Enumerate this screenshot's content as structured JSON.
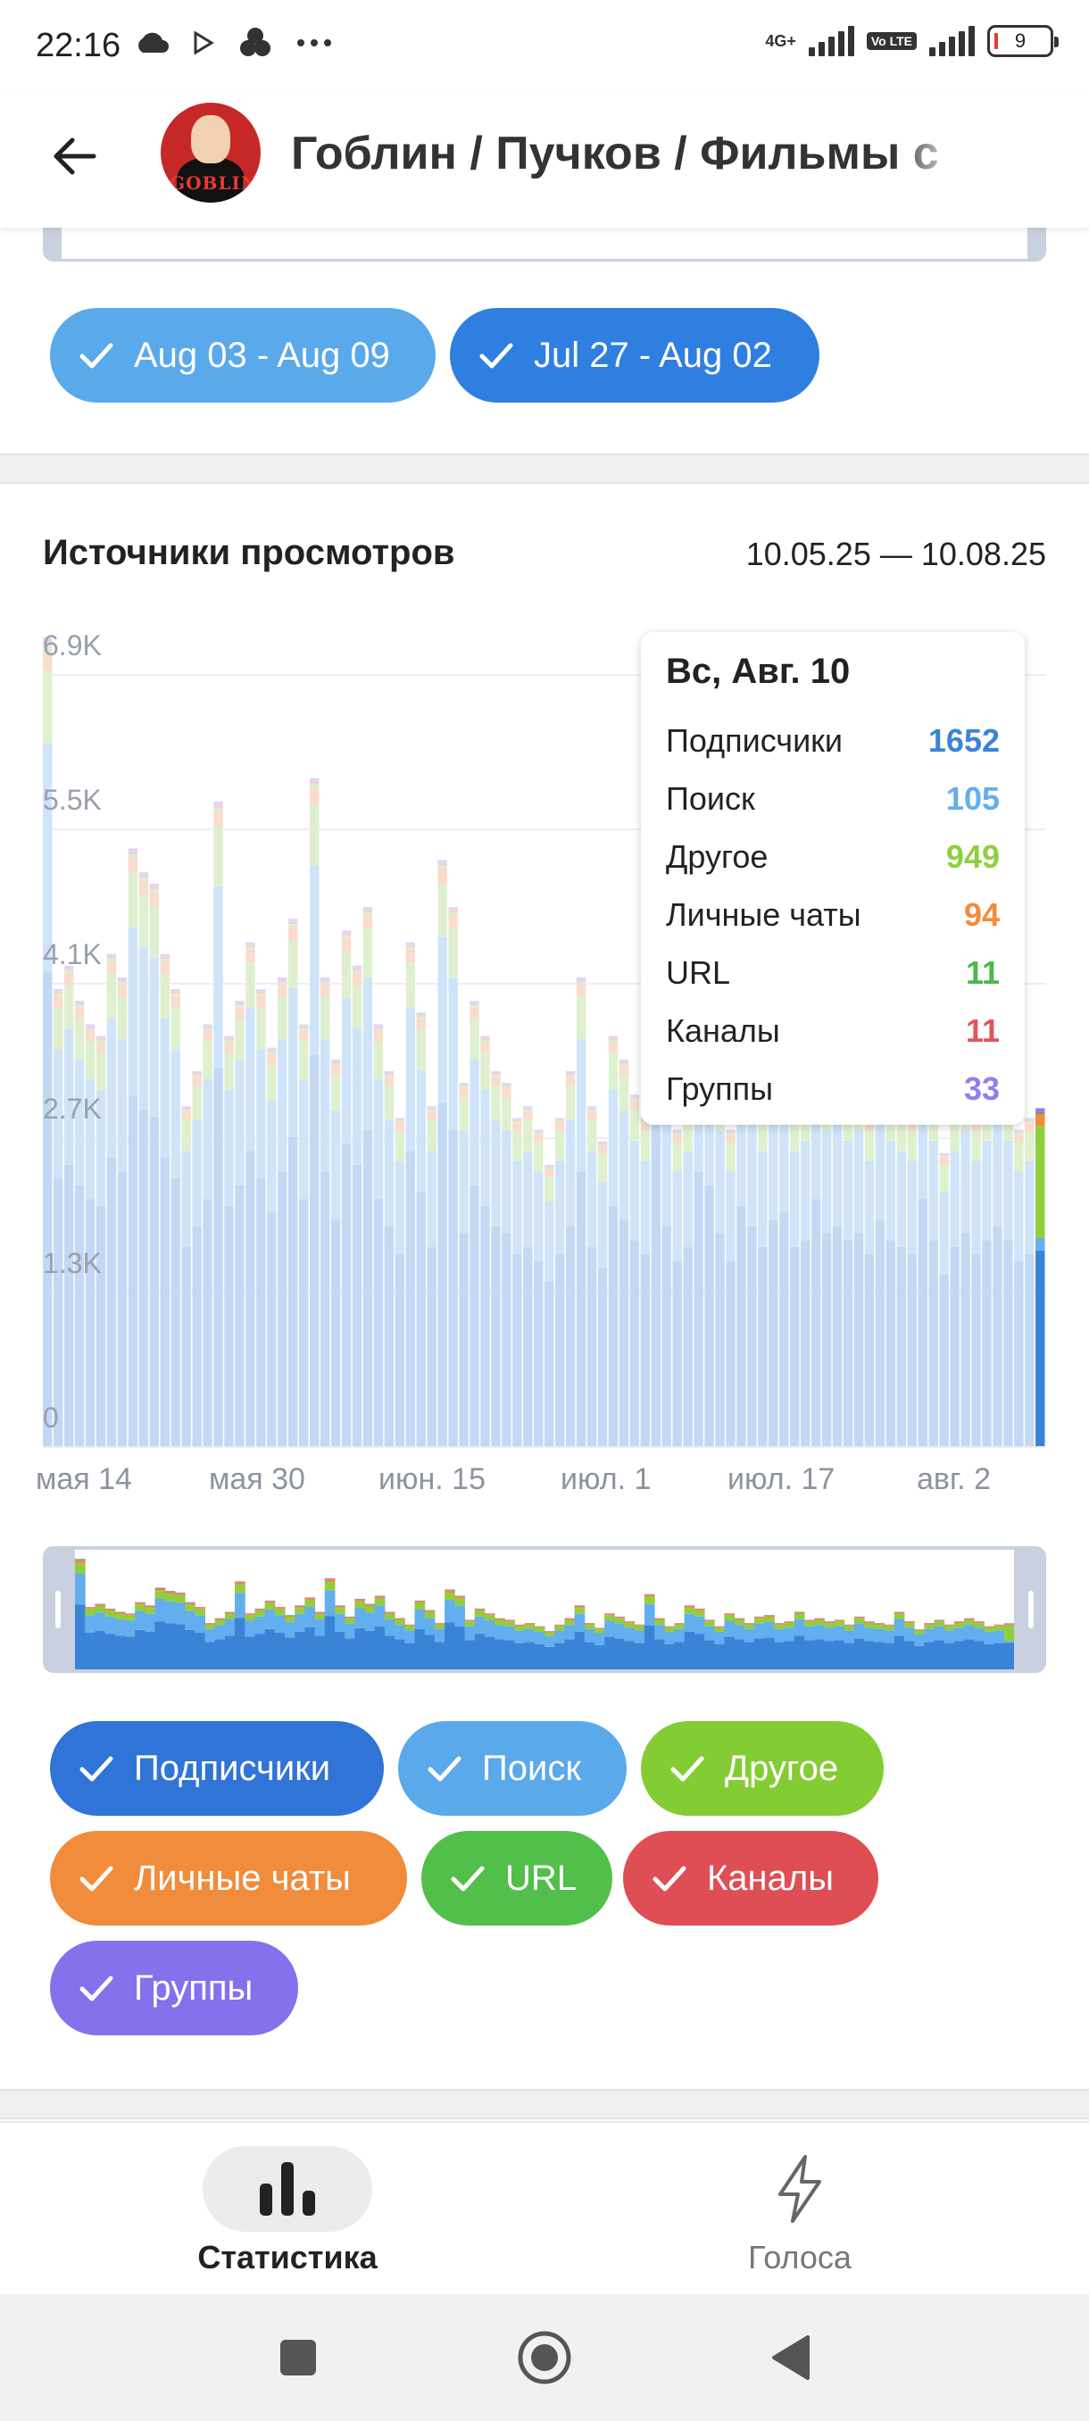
{
  "status_bar": {
    "time": "22:16",
    "network_tag": "4G+",
    "volte_tag": "Vo LTE",
    "battery_level": "9",
    "icons": [
      "cloud-icon",
      "play-store-icon",
      "sync-icon",
      "more-dots-icon"
    ]
  },
  "header": {
    "title": "Гоблин / Пучков / Фильмы с Гоблином",
    "avatar_text": "GOBLIN"
  },
  "date_chips": [
    {
      "label": "Aug 03 - Aug 09",
      "color": "#5aa9ea"
    },
    {
      "label": "Jul 27 - Aug 02",
      "color": "#2f7fe0"
    }
  ],
  "section": {
    "title": "Источники просмотров",
    "date_range": "10.05.25 — 10.08.25"
  },
  "tooltip": {
    "title": "Вс, Авг. 10",
    "rows": [
      {
        "label": "Подписчики",
        "value": "1652",
        "color": "#3a84d8"
      },
      {
        "label": "Поиск",
        "value": "105",
        "color": "#63aeee"
      },
      {
        "label": "Другое",
        "value": "949",
        "color": "#8fcf3e"
      },
      {
        "label": "Личные чаты",
        "value": "94",
        "color": "#f08c3c"
      },
      {
        "label": "URL",
        "value": "11",
        "color": "#4cb84f"
      },
      {
        "label": "Каналы",
        "value": "11",
        "color": "#e0555c"
      },
      {
        "label": "Группы",
        "value": "33",
        "color": "#8e7ef0"
      }
    ]
  },
  "chart_data": {
    "type": "bar",
    "stacked": true,
    "y_ticks": [
      "6.9K",
      "5.5K",
      "4.1K",
      "2.7K",
      "1.3K",
      "0"
    ],
    "ylim": [
      0,
      6900
    ],
    "x_tick_labels": [
      "мая 14",
      "мая 30",
      "июн. 15",
      "июл. 1",
      "июл. 17",
      "авг. 2"
    ],
    "series_names": [
      "Подписчики",
      "Поиск",
      "Другое",
      "Личные чаты",
      "URL",
      "Каналы",
      "Группы"
    ],
    "series_colors": [
      "#3a84d8",
      "#63aeee",
      "#8fcf3e",
      "#f08c3c",
      "#4cb84f",
      "#e0555c",
      "#8e7ef0"
    ],
    "x_start": "2025-05-10",
    "totals": [
      6900,
      3900,
      4100,
      3800,
      3600,
      3500,
      4200,
      4000,
      5100,
      4900,
      4800,
      4200,
      3900,
      2900,
      3200,
      3600,
      5500,
      3500,
      3800,
      4300,
      3900,
      3400,
      4000,
      4500,
      3600,
      5700,
      4000,
      3300,
      4400,
      4100,
      4600,
      3600,
      3200,
      2800,
      4300,
      3700,
      2900,
      5000,
      4600,
      3100,
      3800,
      3500,
      3200,
      3100,
      2800,
      2900,
      2700,
      2400,
      2800,
      3200,
      4000,
      2900,
      2600,
      3500,
      3300,
      3000,
      2800,
      4700,
      3200,
      2700,
      2900,
      4000,
      3800,
      3100,
      2700,
      3500,
      3200,
      2900,
      3300,
      3400,
      2900,
      3000,
      3600,
      3100,
      3200,
      3000,
      3100,
      2800,
      3300,
      3000,
      2900,
      2800,
      3600,
      3000,
      2500,
      2900,
      3100,
      2800,
      3000,
      3200,
      3000,
      2700,
      2800,
      2900
    ],
    "last_day": {
      "Подписчики": 1652,
      "Поиск": 105,
      "Другое": 949,
      "Личные чаты": 94,
      "URL": 11,
      "Каналы": 11,
      "Группы": 33
    }
  },
  "source_chips": [
    {
      "label": "Подписчики",
      "color": "#2f74d6"
    },
    {
      "label": "Поиск",
      "color": "#5aa9ea"
    },
    {
      "label": "Другое",
      "color": "#84cc34"
    },
    {
      "label": "Личные чаты",
      "color": "#f08c3c"
    },
    {
      "label": "URL",
      "color": "#52bf4b"
    },
    {
      "label": "Каналы",
      "color": "#df4e54"
    },
    {
      "label": "Группы",
      "color": "#8471ec"
    }
  ],
  "bottom_nav": {
    "items": [
      {
        "label": "Статистика",
        "icon": "bar-chart-icon",
        "active": true
      },
      {
        "label": "Голоса",
        "icon": "lightning-icon",
        "active": false
      }
    ]
  },
  "system_nav": [
    "recents-square-icon",
    "home-circle-icon",
    "back-triangle-icon"
  ]
}
